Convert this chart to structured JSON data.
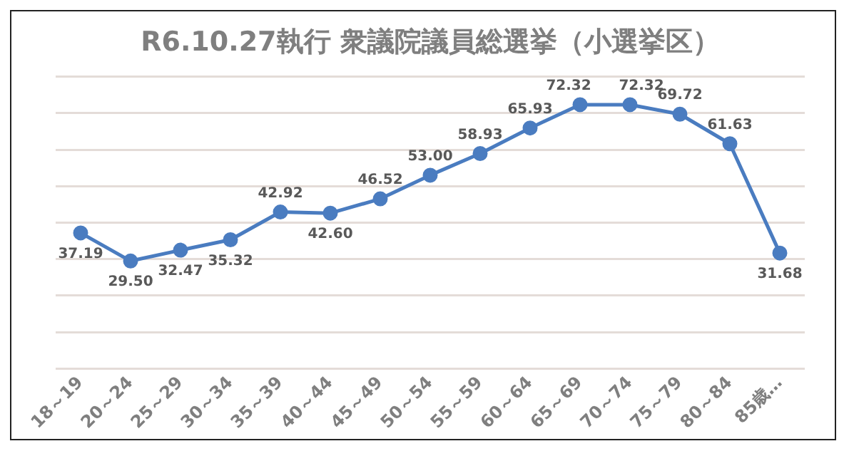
{
  "chart_data": {
    "type": "line",
    "title": "R6.10.27執行 衆議院議員総選挙（小選挙区）",
    "categories": [
      "18～19",
      "20～24",
      "25～29",
      "30～34",
      "35～39",
      "40～44",
      "45～49",
      "50～54",
      "55～59",
      "60～64",
      "65～69",
      "70～74",
      "75～79",
      "80～84",
      "85歳…"
    ],
    "series": [
      {
        "color": "#4a7cc0",
        "values": [
          37.19,
          29.5,
          32.47,
          35.32,
          42.92,
          42.6,
          46.52,
          53.0,
          58.93,
          65.93,
          72.32,
          72.32,
          69.72,
          61.63,
          31.68
        ],
        "value_labels": [
          "37.19",
          "29.50",
          "32.47",
          "35.32",
          "42.92",
          "42.60",
          "46.52",
          "53.00",
          "58.93",
          "65.93",
          "72.32",
          "72.32",
          "69.72",
          "61.63",
          "31.68"
        ]
      }
    ],
    "ylim": [
      0,
      80
    ],
    "yticks": [
      0,
      10,
      20,
      30,
      40,
      50,
      60,
      70,
      80
    ],
    "tick_labels": "x",
    "grid": "y",
    "legend": false,
    "marker": "circle",
    "line_style": "solid"
  }
}
